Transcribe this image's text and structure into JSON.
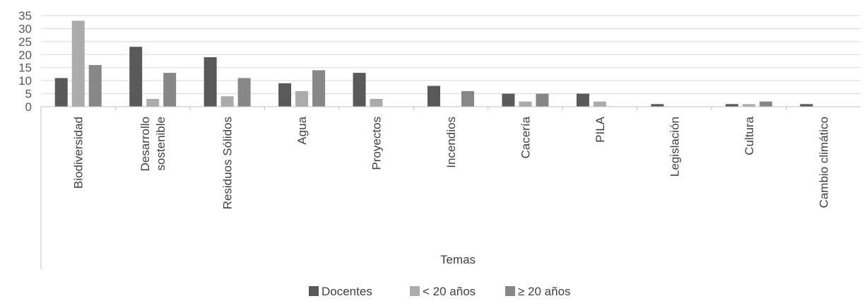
{
  "chart_data": {
    "type": "bar",
    "xlabel": "Temas",
    "ylabel": "",
    "ylim": [
      0,
      35
    ],
    "yticks": [
      0,
      5,
      10,
      15,
      20,
      25,
      30,
      35
    ],
    "grid": true,
    "legend_position": "bottom",
    "categories": [
      "Biodiversidad",
      "Desarrollo sostenible",
      "Residuos Sólidos",
      "Agua",
      "Proyectos",
      "Incendios",
      "Cacería",
      "PILA",
      "Legislación",
      "Cultura",
      "Cambio climático"
    ],
    "series": [
      {
        "name": "Docentes",
        "color": "#595959",
        "values": [
          11,
          23,
          19,
          9,
          13,
          8,
          5,
          5,
          1,
          1,
          1
        ]
      },
      {
        "name": "< 20 años",
        "color": "#ababab",
        "values": [
          33,
          3,
          4,
          6,
          3,
          0,
          2,
          2,
          0,
          1,
          0
        ]
      },
      {
        "name": "≥ 20 años",
        "color": "#878787",
        "values": [
          16,
          13,
          11,
          14,
          0,
          6,
          5,
          0,
          0,
          2,
          0
        ]
      }
    ]
  }
}
